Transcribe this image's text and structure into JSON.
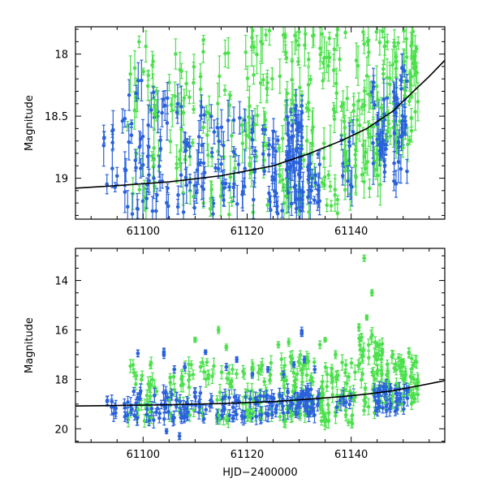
{
  "chart_data": [
    {
      "type": "scatter",
      "panel": "top",
      "ylabel": "Magnitude",
      "xlabel": "",
      "xlim": [
        61087,
        61158
      ],
      "ylim": [
        19.33,
        17.78
      ],
      "y_inverted": true,
      "xticks": [
        61100,
        61120,
        61140
      ],
      "xtick_labels": [
        "61100",
        "61120",
        "61140"
      ],
      "yticks": [
        18,
        18.5,
        19
      ],
      "ytick_labels": [
        "18",
        "18.5",
        "19"
      ],
      "colors": {
        "blue": "#2a62dc",
        "green": "#4de04d",
        "model": "#000000"
      },
      "model_curve": {
        "x": [
          61087,
          61095,
          61105,
          61115,
          61125,
          61132,
          61138,
          61143,
          61148,
          61152,
          61155,
          61158
        ],
        "y": [
          19.08,
          19.06,
          19.03,
          18.98,
          18.9,
          18.8,
          18.7,
          18.6,
          18.46,
          18.3,
          18.18,
          18.05
        ]
      },
      "series": [
        {
          "color_key": "blue",
          "clusters": [
            {
              "x": [
                61092,
                61095
              ],
              "ymin": 18.6,
              "ymax": 19.1,
              "n": 10
            },
            {
              "x": [
                61096,
                61100
              ],
              "ymin": 18.2,
              "ymax": 19.3,
              "n": 24
            },
            {
              "x": [
                61100.5,
                61105
              ],
              "ymin": 18.3,
              "ymax": 19.3,
              "n": 28
            },
            {
              "x": [
                61106,
                61112
              ],
              "ymin": 18.4,
              "ymax": 19.3,
              "n": 30
            },
            {
              "x": [
                61113,
                61122
              ],
              "ymin": 18.5,
              "ymax": 19.3,
              "n": 40
            },
            {
              "x": [
                61123,
                61127
              ],
              "ymin": 18.6,
              "ymax": 19.3,
              "n": 24
            },
            {
              "x": [
                61127.5,
                61131
              ],
              "ymin": 18.4,
              "ymax": 19.3,
              "n": 60
            },
            {
              "x": [
                61131.5,
                61134
              ],
              "ymin": 18.8,
              "ymax": 19.2,
              "n": 20
            },
            {
              "x": [
                61138,
                61141
              ],
              "ymin": 18.6,
              "ymax": 19.1,
              "n": 10
            },
            {
              "x": [
                61144,
                61147
              ],
              "ymin": 18.2,
              "ymax": 19.0,
              "n": 30
            },
            {
              "x": [
                61148,
                61151
              ],
              "ymin": 18.1,
              "ymax": 19.1,
              "n": 34
            }
          ]
        },
        {
          "color_key": "green",
          "clusters": [
            {
              "x": [
                61097,
                61103
              ],
              "ymin": 17.8,
              "ymax": 19.3,
              "n": 34
            },
            {
              "x": [
                61105,
                61110
              ],
              "ymin": 17.8,
              "ymax": 19.3,
              "n": 28
            },
            {
              "x": [
                61111,
                61118
              ],
              "ymin": 17.8,
              "ymax": 19.3,
              "n": 32
            },
            {
              "x": [
                61119,
                61125
              ],
              "ymin": 17.8,
              "ymax": 19.3,
              "n": 40
            },
            {
              "x": [
                61126,
                61133
              ],
              "ymin": 17.8,
              "ymax": 19.3,
              "n": 60
            },
            {
              "x": [
                61134,
                61141
              ],
              "ymin": 17.8,
              "ymax": 19.3,
              "n": 60
            },
            {
              "x": [
                61141,
                61146
              ],
              "ymin": 17.8,
              "ymax": 19.1,
              "n": 44
            },
            {
              "x": [
                61146,
                61153
              ],
              "ymin": 17.8,
              "ymax": 18.8,
              "n": 70
            }
          ]
        }
      ]
    },
    {
      "type": "scatter",
      "panel": "bottom",
      "ylabel": "Magnitude",
      "xlabel": "HJD−2400000",
      "xlim": [
        61087,
        61158
      ],
      "ylim": [
        20.55,
        12.7
      ],
      "y_inverted": true,
      "xticks": [
        61100,
        61120,
        61140
      ],
      "xtick_labels": [
        "61100",
        "61120",
        "61140"
      ],
      "yticks": [
        14,
        16,
        18,
        20
      ],
      "ytick_labels": [
        "14",
        "16",
        "18",
        "20"
      ],
      "colors": {
        "blue": "#2a62dc",
        "green": "#4de04d",
        "model": "#000000"
      },
      "model_curve": {
        "x": [
          61087,
          61095,
          61105,
          61115,
          61125,
          61132,
          61138,
          61143,
          61148,
          61152,
          61155,
          61158
        ],
        "y": [
          19.08,
          19.06,
          19.03,
          18.98,
          18.9,
          18.8,
          18.7,
          18.6,
          18.46,
          18.3,
          18.18,
          18.05
        ]
      },
      "series": [
        {
          "color_key": "blue",
          "clusters": [
            {
              "x": [
                61092,
                61095
              ],
              "ymin": 18.7,
              "ymax": 19.5,
              "n": 8
            },
            {
              "x": [
                61096,
                61100
              ],
              "ymin": 18.4,
              "ymax": 19.6,
              "n": 20
            },
            {
              "x": [
                61100.5,
                61106
              ],
              "ymin": 18.5,
              "ymax": 19.8,
              "n": 26
            },
            {
              "x": [
                61106,
                61113
              ],
              "ymin": 18.5,
              "ymax": 19.6,
              "n": 28
            },
            {
              "x": [
                61113,
                61123
              ],
              "ymin": 18.6,
              "ymax": 19.6,
              "n": 40
            },
            {
              "x": [
                61123,
                61127
              ],
              "ymin": 18.6,
              "ymax": 19.5,
              "n": 22
            },
            {
              "x": [
                61127.5,
                61134
              ],
              "ymin": 18.4,
              "ymax": 19.5,
              "n": 56
            },
            {
              "x": [
                61137,
                61141
              ],
              "ymin": 18.6,
              "ymax": 19.2,
              "n": 10
            },
            {
              "x": [
                61144,
                61151
              ],
              "ymin": 18.3,
              "ymax": 19.3,
              "n": 50
            }
          ],
          "points": [
            [
              61099,
              16.95
            ],
            [
              61104,
              16.9
            ],
            [
              61104,
              17.0
            ],
            [
              61106,
              17.6
            ],
            [
              61108,
              17.5
            ],
            [
              61112,
              16.9
            ],
            [
              61116,
              17.5
            ],
            [
              61118,
              17.2
            ],
            [
              61121,
              17.8
            ],
            [
              61124,
              17.6
            ],
            [
              61127,
              17.8
            ],
            [
              61129,
              17.4
            ],
            [
              61130.5,
              16.05
            ],
            [
              61130.5,
              16.15
            ],
            [
              61131,
              17.2
            ],
            [
              61133,
              17.6
            ],
            [
              61104.5,
              20.1
            ],
            [
              61107,
              20.3
            ]
          ]
        },
        {
          "color_key": "green",
          "clusters": [
            {
              "x": [
                61097,
                61103
              ],
              "ymin": 17.2,
              "ymax": 19.7,
              "n": 30
            },
            {
              "x": [
                61105,
                61110
              ],
              "ymin": 17.3,
              "ymax": 19.6,
              "n": 26
            },
            {
              "x": [
                61111,
                61118
              ],
              "ymin": 17.3,
              "ymax": 19.7,
              "n": 30
            },
            {
              "x": [
                61119,
                61125
              ],
              "ymin": 17.3,
              "ymax": 19.6,
              "n": 36
            },
            {
              "x": [
                61126,
                61133
              ],
              "ymin": 17.0,
              "ymax": 19.8,
              "n": 56
            },
            {
              "x": [
                61134,
                61141
              ],
              "ymin": 17.2,
              "ymax": 19.8,
              "n": 56
            },
            {
              "x": [
                61141,
                61146
              ],
              "ymin": 16.2,
              "ymax": 19.4,
              "n": 48
            },
            {
              "x": [
                61146,
                61153
              ],
              "ymin": 16.9,
              "ymax": 19.0,
              "n": 60
            }
          ],
          "points": [
            [
              61110,
              16.4
            ],
            [
              61114.5,
              16.0
            ],
            [
              61116,
              16.7
            ],
            [
              61126,
              16.6
            ],
            [
              61128,
              16.5
            ],
            [
              61134,
              16.6
            ],
            [
              61135,
              16.4
            ],
            [
              61137,
              17.0
            ],
            [
              61141.5,
              15.9
            ],
            [
              61142,
              16.3
            ],
            [
              61142.5,
              13.1
            ],
            [
              61144,
              14.5
            ],
            [
              61143,
              15.5
            ],
            [
              61145,
              16.6
            ],
            [
              61146,
              16.9
            ],
            [
              61148,
              17.0
            ],
            [
              61150,
              17.3
            ],
            [
              61152,
              17.4
            ]
          ]
        }
      ]
    }
  ]
}
